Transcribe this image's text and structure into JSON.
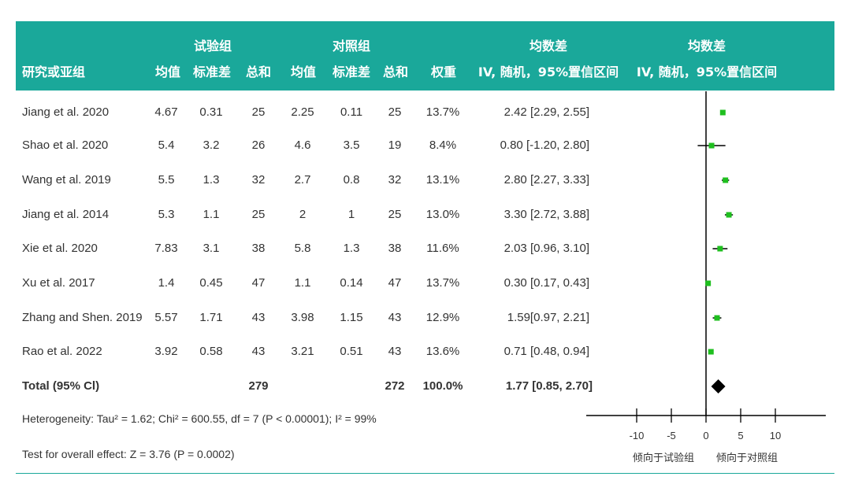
{
  "header": {
    "group_experiment": "试验组",
    "group_control": "对照组",
    "effect_title": "均数差",
    "plot_title": "均数差",
    "study": "研究或亚组",
    "mean": "均值",
    "sd": "标准差",
    "total": "总和",
    "weight": "权重",
    "method": "IV, 随机，95%置信区间",
    "plot_method": "IV, 随机，95%置信区间"
  },
  "chart_data": {
    "type": "forest",
    "xlim": [
      -10,
      10
    ],
    "ticks": [
      "-10",
      "-5",
      "0",
      "5",
      "10"
    ],
    "tick_values": [
      -10,
      -5,
      0,
      5,
      10
    ],
    "direction_left": "倾向于试验组",
    "direction_right": "倾向于对照组",
    "marker_color": "#1fbf1f",
    "studies": [
      {
        "name": "Jiang et al. 2020",
        "exp_mean": "4.67",
        "exp_sd": "0.31",
        "exp_total": "25",
        "ctrl_mean": "2.25",
        "ctrl_sd": "0.11",
        "ctrl_total": "25",
        "weight": "13.7%",
        "ci_text": "2.42 [2.29, 2.55]",
        "md": 2.42,
        "lo": 2.29,
        "hi": 2.55
      },
      {
        "name": "Shao et al. 2020",
        "exp_mean": "5.4",
        "exp_sd": "3.2",
        "exp_total": "26",
        "ctrl_mean": "4.6",
        "ctrl_sd": "3.5",
        "ctrl_total": "19",
        "weight": "8.4%",
        "ci_text": "0.80 [-1.20, 2.80]",
        "md": 0.8,
        "lo": -1.2,
        "hi": 2.8
      },
      {
        "name": "Wang et al. 2019",
        "exp_mean": "5.5",
        "exp_sd": "1.3",
        "exp_total": "32",
        "ctrl_mean": "2.7",
        "ctrl_sd": "0.8",
        "ctrl_total": "32",
        "weight": "13.1%",
        "ci_text": "2.80 [2.27, 3.33]",
        "md": 2.8,
        "lo": 2.27,
        "hi": 3.33
      },
      {
        "name": "Jiang et al. 2014",
        "exp_mean": "5.3",
        "exp_sd": "1.1",
        "exp_total": "25",
        "ctrl_mean": "2",
        "ctrl_sd": "1",
        "ctrl_total": "25",
        "weight": "13.0%",
        "ci_text": "3.30 [2.72, 3.88]",
        "md": 3.3,
        "lo": 2.72,
        "hi": 3.88
      },
      {
        "name": "Xie et al. 2020",
        "exp_mean": "7.83",
        "exp_sd": "3.1",
        "exp_total": "38",
        "ctrl_mean": "5.8",
        "ctrl_sd": "1.3",
        "ctrl_total": "38",
        "weight": "11.6%",
        "ci_text": "2.03 [0.96, 3.10]",
        "md": 2.03,
        "lo": 0.96,
        "hi": 3.1
      },
      {
        "name": "Xu et al. 2017",
        "exp_mean": "1.4",
        "exp_sd": "0.45",
        "exp_total": "47",
        "ctrl_mean": "1.1",
        "ctrl_sd": "0.14",
        "ctrl_total": "47",
        "weight": "13.7%",
        "ci_text": "0.30 [0.17, 0.43]",
        "md": 0.3,
        "lo": 0.17,
        "hi": 0.43
      },
      {
        "name": "Zhang and Shen. 2019",
        "exp_mean": "5.57",
        "exp_sd": "1.71",
        "exp_total": "43",
        "ctrl_mean": "3.98",
        "ctrl_sd": "1.15",
        "ctrl_total": "43",
        "weight": "12.9%",
        "ci_text": "1.59[0.97, 2.21]",
        "md": 1.59,
        "lo": 0.97,
        "hi": 2.21
      },
      {
        "name": "Rao et al. 2022",
        "exp_mean": "3.92",
        "exp_sd": "0.58",
        "exp_total": "43",
        "ctrl_mean": "3.21",
        "ctrl_sd": "0.51",
        "ctrl_total": "43",
        "weight": "13.6%",
        "ci_text": "0.71 [0.48, 0.94]",
        "md": 0.71,
        "lo": 0.48,
        "hi": 0.94
      }
    ],
    "total": {
      "name": "Total (95% Cl)",
      "exp_total": "279",
      "ctrl_total": "272",
      "weight": "100.0%",
      "ci_text": "1.77 [0.85, 2.70]",
      "md": 1.77,
      "lo": 0.85,
      "hi": 2.7
    }
  },
  "footer": {
    "heterogeneity": "Heterogeneity:  Tau² = 1.62; Chi² = 600.55, df = 7 (P < 0.00001); I² = 99%",
    "overall": "Test for overall effect: Z = 3.76 (P = 0.0002)"
  }
}
